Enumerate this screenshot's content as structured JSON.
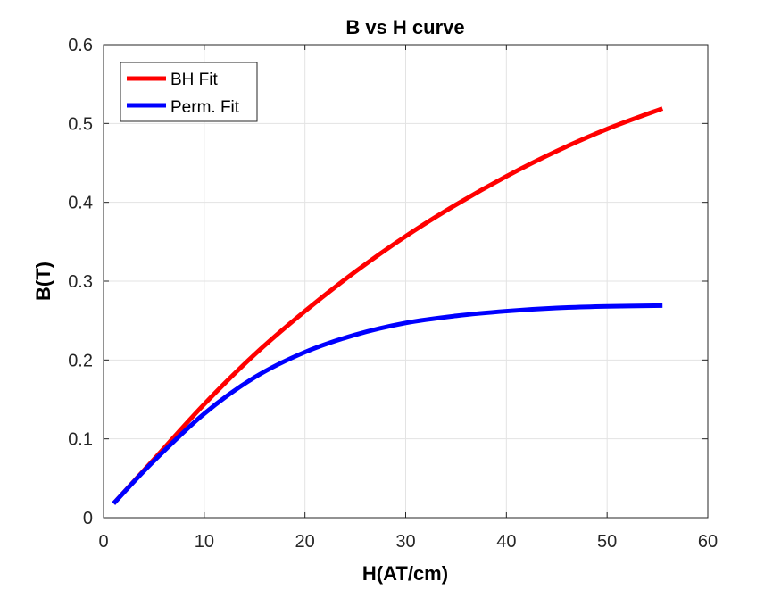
{
  "chart_data": {
    "type": "line",
    "title": "B vs H curve",
    "xlabel": "H(AT/cm)",
    "ylabel": "B(T)",
    "xlim": [
      0,
      60
    ],
    "ylim": [
      0,
      0.6
    ],
    "xticks": [
      0,
      10,
      20,
      30,
      40,
      50,
      60
    ],
    "yticks": [
      0,
      0.1,
      0.2,
      0.3,
      0.4,
      0.5,
      0.6
    ],
    "xtick_labels": [
      "0",
      "10",
      "20",
      "30",
      "40",
      "50",
      "60"
    ],
    "ytick_labels": [
      "0",
      "0.1",
      "0.2",
      "0.3",
      "0.4",
      "0.5",
      "0.6"
    ],
    "grid": true,
    "legend_position": "top-left",
    "series": [
      {
        "name": "BH Fit",
        "color": "#ff0000",
        "x": [
          1,
          5,
          10,
          15,
          20,
          25,
          30,
          35,
          40,
          45,
          50,
          55.5
        ],
        "y": [
          0.018,
          0.074,
          0.144,
          0.207,
          0.262,
          0.312,
          0.357,
          0.397,
          0.433,
          0.465,
          0.493,
          0.519
        ]
      },
      {
        "name": "Perm. Fit",
        "color": "#0000ff",
        "x": [
          1,
          5,
          10,
          15,
          20,
          25,
          30,
          35,
          40,
          45,
          50,
          55.5
        ],
        "y": [
          0.018,
          0.072,
          0.132,
          0.178,
          0.21,
          0.232,
          0.247,
          0.256,
          0.262,
          0.266,
          0.268,
          0.269
        ]
      }
    ]
  }
}
